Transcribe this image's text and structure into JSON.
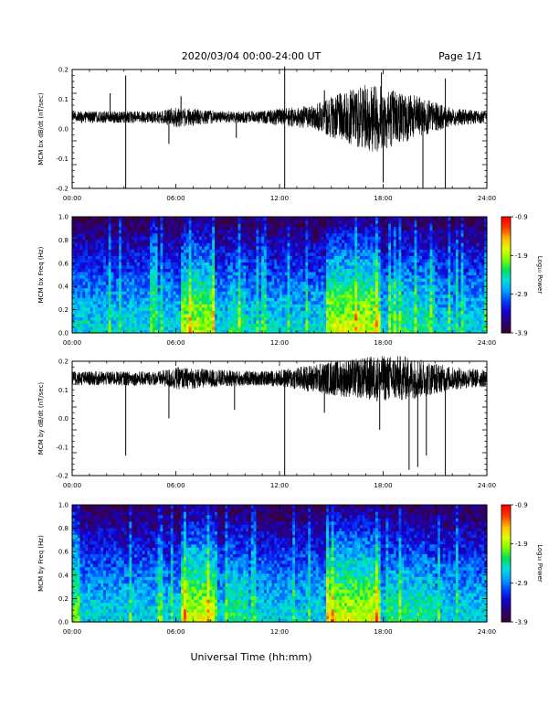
{
  "header": {
    "title": "2020/03/04  00:00-24:00 UT",
    "page": "Page 1/1"
  },
  "footer": {
    "xlabel": "Universal Time (hh:mm)"
  },
  "colors": {
    "trace": "#000000",
    "colormap": [
      "#3b0030",
      "#2a007a",
      "#1400d0",
      "#0040ff",
      "#00a0ff",
      "#00e0e0",
      "#00e060",
      "#80ff00",
      "#e0ff00",
      "#ffc000",
      "#ff4000",
      "#ff0000"
    ]
  },
  "chart_data": [
    {
      "type": "line",
      "ylabel": "MCM bx dB/dt (nT/sec)",
      "xlim": [
        "00:00",
        "24:00"
      ],
      "ylim": [
        -0.2,
        0.2
      ],
      "x_ticks": [
        "00:00",
        "06:00",
        "12:00",
        "18:00",
        "24:00"
      ],
      "y_ticks": [
        "0.2",
        "0.1",
        "0.0",
        "-0.1",
        "-0.2"
      ],
      "baseline": 0.04,
      "envelope": [
        [
          0,
          0.02
        ],
        [
          5,
          0.02
        ],
        [
          6,
          0.035
        ],
        [
          8.5,
          0.02
        ],
        [
          11,
          0.02
        ],
        [
          12,
          0.03
        ],
        [
          14,
          0.04
        ],
        [
          15,
          0.07
        ],
        [
          16.5,
          0.1
        ],
        [
          17.5,
          0.12
        ],
        [
          18.5,
          0.1
        ],
        [
          20,
          0.07
        ],
        [
          22,
          0.03
        ],
        [
          24,
          0.02
        ]
      ],
      "spikes": [
        {
          "t": 3.1,
          "v": 0.18
        },
        {
          "t": 3.1,
          "v": -0.2
        },
        {
          "t": 2.2,
          "v": 0.12
        },
        {
          "t": 5.6,
          "v": -0.05
        },
        {
          "t": 6.3,
          "v": 0.11
        },
        {
          "t": 9.5,
          "v": -0.03
        },
        {
          "t": 12.3,
          "v": 0.21
        },
        {
          "t": 12.3,
          "v": -0.22
        },
        {
          "t": 14.6,
          "v": 0.13
        },
        {
          "t": 17.9,
          "v": 0.19
        },
        {
          "t": 18.0,
          "v": -0.18
        },
        {
          "t": 20.3,
          "v": -0.2
        },
        {
          "t": 21.6,
          "v": 0.17
        },
        {
          "t": 21.6,
          "v": -0.2
        }
      ]
    },
    {
      "type": "heatmap",
      "ylabel": "MCM bx Freq (Hz)",
      "xlim": [
        "00:00",
        "24:00"
      ],
      "ylim": [
        0.0,
        1.0
      ],
      "x_ticks": [
        "00:00",
        "06:00",
        "12:00",
        "18:00",
        "24:00"
      ],
      "y_ticks": [
        "1.0",
        "0.8",
        "0.6",
        "0.4",
        "0.2",
        "0.0"
      ],
      "colorbar": {
        "label": "Log₁₀ Power",
        "ticks": [
          "-0.9",
          "-1.9",
          "-2.9",
          "-3.9"
        ],
        "range": [
          -3.9,
          -0.9
        ]
      },
      "active_bands": [
        [
          6.3,
          8.2,
          0.9
        ],
        [
          9.0,
          10.0,
          0.3
        ],
        [
          14.7,
          17.8,
          1.0
        ],
        [
          18.3,
          21.0,
          0.3
        ]
      ]
    },
    {
      "type": "line",
      "ylabel": "MCM by dB/dt (nT/sec)",
      "xlim": [
        "00:00",
        "24:00"
      ],
      "ylim": [
        -0.2,
        0.2
      ],
      "x_ticks": [
        "00:00",
        "06:00",
        "12:00",
        "18:00",
        "24:00"
      ],
      "y_ticks": [
        "0.2",
        "0.1",
        "0.0",
        "-0.1",
        "-0.2"
      ],
      "baseline": 0.14,
      "envelope": [
        [
          0,
          0.025
        ],
        [
          5,
          0.025
        ],
        [
          6,
          0.04
        ],
        [
          8.5,
          0.03
        ],
        [
          11,
          0.025
        ],
        [
          12,
          0.03
        ],
        [
          14,
          0.05
        ],
        [
          15,
          0.06
        ],
        [
          16.5,
          0.07
        ],
        [
          17.5,
          0.08
        ],
        [
          19,
          0.08
        ],
        [
          20,
          0.07
        ],
        [
          22,
          0.04
        ],
        [
          24,
          0.03
        ]
      ],
      "spikes": [
        {
          "t": 3.1,
          "v": -0.13
        },
        {
          "t": 5.6,
          "v": 0.0
        },
        {
          "t": 9.4,
          "v": 0.03
        },
        {
          "t": 12.3,
          "v": -0.21
        },
        {
          "t": 14.6,
          "v": 0.02
        },
        {
          "t": 17.8,
          "v": -0.04
        },
        {
          "t": 19.5,
          "v": -0.18
        },
        {
          "t": 20.0,
          "v": -0.17
        },
        {
          "t": 20.5,
          "v": -0.13
        },
        {
          "t": 21.6,
          "v": -0.2
        }
      ]
    },
    {
      "type": "heatmap",
      "ylabel": "MCM by Freq (Hz)",
      "xlim": [
        "00:00",
        "24:00"
      ],
      "ylim": [
        0.0,
        1.0
      ],
      "x_ticks": [
        "00:00",
        "06:00",
        "12:00",
        "18:00",
        "24:00"
      ],
      "y_ticks": [
        "1.0",
        "0.8",
        "0.6",
        "0.4",
        "0.2",
        "0.0"
      ],
      "colorbar": {
        "label": "Log₁₀ Power",
        "ticks": [
          "-0.9",
          "-1.9",
          "-2.9",
          "-3.9"
        ],
        "range": [
          -3.9,
          -0.9
        ]
      },
      "active_bands": [
        [
          6.3,
          8.2,
          1.0
        ],
        [
          9.0,
          10.2,
          0.35
        ],
        [
          14.7,
          17.8,
          1.0
        ],
        [
          18.3,
          21.0,
          0.3
        ]
      ]
    }
  ]
}
